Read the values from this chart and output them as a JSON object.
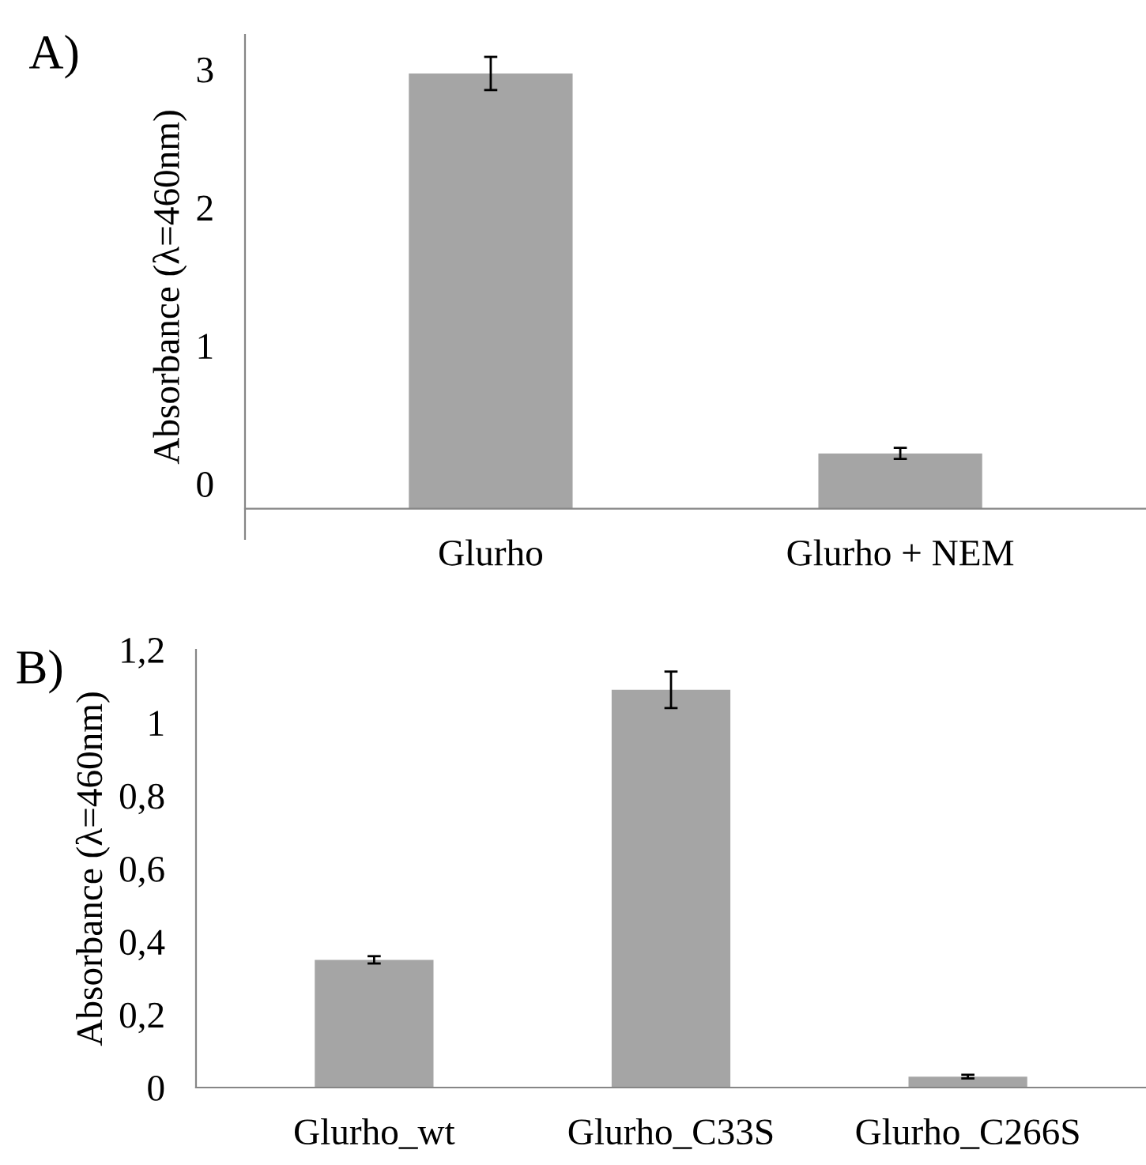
{
  "chart_data": [
    {
      "type": "bar",
      "title": "A)",
      "ylabel": "Absorbance (λ=460nm)",
      "categories": [
        "Glurho",
        "Glurho + NEM"
      ],
      "values": [
        3.15,
        0.4
      ],
      "base": [
        -0.18,
        -0.18
      ],
      "errors": [
        0.12,
        0.04
      ],
      "color": "#a5a5a5",
      "ylim": [
        -0.4,
        3.25
      ],
      "yticks": [
        0,
        1,
        2,
        3
      ],
      "grid": false,
      "legend": false
    },
    {
      "type": "bar",
      "title": "B)",
      "ylabel": "Absorbance (λ=460nm)",
      "categories": [
        "Glurho_wt",
        "Glurho_C33S",
        "Glurho_C266S"
      ],
      "values": [
        0.35,
        1.09,
        0.03
      ],
      "errors": [
        0.01,
        0.05,
        0.005
      ],
      "color": "#a5a5a5",
      "ylim": [
        0,
        1.2
      ],
      "yticks": [
        0,
        {
          "value": 0.2,
          "label": "0,2"
        },
        {
          "value": 0.4,
          "label": "0,4"
        },
        {
          "value": 0.6,
          "label": "0,6"
        },
        {
          "value": 0.8,
          "label": "0,8"
        },
        1,
        {
          "value": 1.2,
          "label": "1,2"
        }
      ],
      "grid": false,
      "legend": false
    }
  ]
}
